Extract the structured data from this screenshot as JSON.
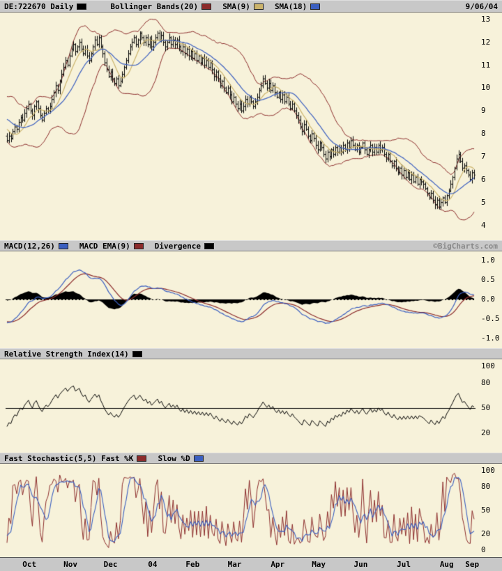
{
  "header": {
    "symbol": "DE:722670 Daily",
    "symbol_swatch": "#000000",
    "date": "9/06/04"
  },
  "attribution": "©BigCharts.com",
  "theme": {
    "background": "#F7F2DA",
    "panel_header_bg": "#C8C8C8",
    "bar_color": "#000000"
  },
  "chart_data": [
    {
      "id": "price",
      "type": "bar",
      "style": "ohlc-daily-bars",
      "title": "DE:722670 Daily",
      "ylim": [
        3.5,
        13.3
      ],
      "yticks": [
        "13",
        "12",
        "11",
        "10",
        "9",
        "8",
        "7",
        "6",
        "5",
        "4"
      ],
      "x_axis": {
        "labels": [
          "Oct",
          "Nov",
          "Dec",
          "04",
          "Feb",
          "Mar",
          "Apr",
          "May",
          "Jun",
          "Jul",
          "Aug",
          "Sep"
        ],
        "start_indices": [
          0,
          23,
          42,
          64,
          85,
          105,
          128,
          149,
          170,
          192,
          214,
          236
        ]
      },
      "series": [
        {
          "name": "close",
          "values": [
            7.7,
            7.9,
            7.8,
            8.1,
            8.3,
            8.2,
            8.5,
            8.7,
            8.6,
            8.9,
            9.1,
            9.3,
            9.0,
            8.8,
            9.2,
            9.4,
            9.1,
            8.8,
            8.6,
            8.9,
            9.1,
            9.0,
            9.2,
            9.5,
            9.8,
            10.1,
            9.9,
            10.3,
            10.6,
            10.9,
            11.2,
            11.0,
            11.4,
            11.7,
            11.9,
            11.6,
            11.8,
            12.0,
            11.7,
            11.5,
            11.7,
            11.4,
            11.2,
            11.5,
            11.8,
            12.1,
            11.9,
            12.2,
            11.8,
            11.5,
            11.1,
            10.8,
            10.5,
            10.7,
            10.4,
            10.2,
            10.4,
            10.1,
            10.3,
            10.6,
            10.9,
            11.2,
            11.5,
            11.8,
            12.0,
            12.2,
            11.9,
            12.1,
            12.4,
            12.2,
            12.0,
            12.2,
            11.9,
            12.1,
            11.8,
            12.0,
            12.2,
            12.4,
            12.1,
            12.3,
            12.0,
            11.8,
            12.0,
            12.2,
            11.9,
            12.1,
            11.9,
            12.1,
            11.8,
            11.6,
            11.8,
            11.5,
            11.7,
            11.4,
            11.6,
            11.3,
            11.5,
            11.2,
            11.4,
            11.1,
            11.3,
            11.0,
            11.2,
            10.9,
            11.1,
            10.8,
            10.5,
            10.7,
            10.4,
            10.1,
            10.3,
            10.0,
            9.8,
            10.0,
            9.7,
            9.4,
            9.6,
            9.3,
            9.1,
            9.3,
            9.0,
            9.2,
            9.5,
            9.3,
            9.6,
            9.4,
            9.2,
            9.4,
            9.6,
            9.9,
            10.1,
            10.4,
            10.2,
            10.0,
            10.2,
            9.9,
            10.1,
            9.8,
            9.6,
            9.8,
            9.5,
            9.7,
            9.4,
            9.6,
            9.3,
            9.1,
            9.3,
            9.0,
            8.8,
            8.6,
            8.3,
            8.1,
            8.4,
            8.2,
            7.9,
            7.7,
            8.0,
            7.8,
            7.5,
            7.3,
            7.6,
            7.4,
            7.1,
            6.9,
            7.2,
            7.0,
            7.3,
            7.1,
            7.4,
            7.2,
            7.4,
            7.2,
            7.5,
            7.3,
            7.6,
            7.4,
            7.7,
            7.5,
            7.3,
            7.5,
            7.2,
            7.4,
            7.6,
            7.3,
            7.1,
            7.3,
            7.5,
            7.2,
            7.4,
            7.2,
            7.5,
            7.3,
            7.4,
            7.1,
            6.9,
            7.1,
            6.8,
            6.6,
            6.8,
            6.5,
            6.3,
            6.5,
            6.2,
            6.4,
            6.1,
            6.3,
            6.0,
            6.2,
            5.9,
            6.1,
            5.8,
            6.0,
            5.9,
            5.8,
            5.6,
            5.4,
            5.2,
            5.4,
            5.1,
            4.9,
            5.1,
            4.8,
            5.0,
            5.2,
            5.0,
            5.3,
            5.5,
            5.8,
            6.1,
            6.5,
            6.9,
            7.1,
            6.8,
            6.5,
            6.6,
            6.4,
            6.2,
            6.0,
            6.3,
            6.2
          ]
        }
      ],
      "overlays": [
        {
          "name": "Bollinger Bands(20)",
          "color": "#8B2B2B"
        },
        {
          "name": "SMA(9)",
          "color": "#CBB36B"
        },
        {
          "name": "SMA(18)",
          "color": "#3B5FC0"
        }
      ]
    },
    {
      "id": "macd",
      "type": "line",
      "title": "MACD(12,26)",
      "ylim": [
        -1.2,
        1.2
      ],
      "yticks": [
        "1.0",
        "0.5",
        "0.0",
        "-0.5",
        "-1.0"
      ],
      "zero_line": "dotted",
      "series_derived": [
        {
          "name": "MACD",
          "color": "#3B5FC0"
        },
        {
          "name": "MACD EMA(9)",
          "color": "#8B2B2B"
        },
        {
          "name": "Divergence",
          "color": "#000000"
        }
      ]
    },
    {
      "id": "rsi",
      "type": "line",
      "title": "Relative Strength Index(14)",
      "period": 14,
      "ylim": [
        0,
        107
      ],
      "yticks": [
        "100",
        "80",
        "50",
        "20"
      ],
      "midline": 50,
      "color": "#000000"
    },
    {
      "id": "stoch",
      "type": "line",
      "title": "Fast Stochastic(5,5)",
      "header_label": "Fast Stochastic(5,5) Fast %K",
      "k_period": 5,
      "d_period": 5,
      "ylim": [
        -5,
        107
      ],
      "yticks": [
        "100",
        "80",
        "50",
        "20",
        "0"
      ],
      "series_derived": [
        {
          "name": "Fast %K",
          "color": "#8B2B2B"
        },
        {
          "name": "Slow %D",
          "color": "#3B5FC0"
        }
      ]
    }
  ]
}
